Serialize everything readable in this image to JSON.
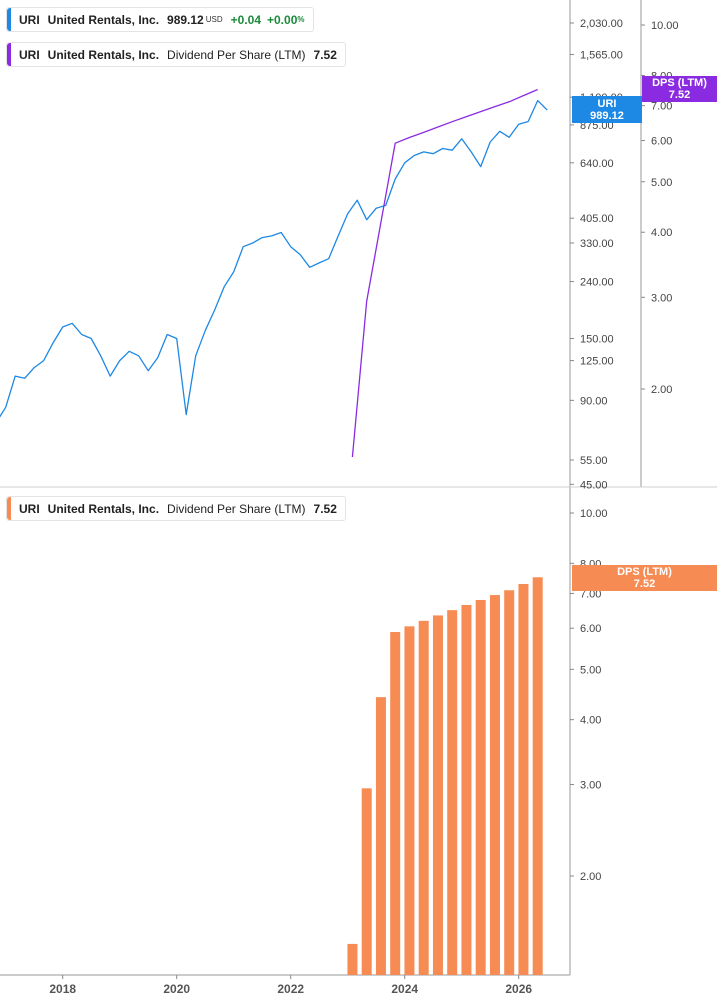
{
  "legends": {
    "price": {
      "ticker": "URI",
      "name": "United Rentals, Inc.",
      "value": "989.12",
      "currency": "USD",
      "change": "+0.04",
      "change_pct": "+0.00",
      "pct_sign": "%",
      "color": "#1e88e5"
    },
    "dps_top": {
      "ticker": "URI",
      "name": "United Rentals, Inc.",
      "metric": "Dividend Per Share (LTM)",
      "value": "7.52",
      "color": "#8a2be2"
    },
    "dps_bottom": {
      "ticker": "URI",
      "name": "United Rentals, Inc.",
      "metric": "Dividend Per Share (LTM)",
      "value": "7.52",
      "color": "#f68b53"
    }
  },
  "tags": {
    "price": {
      "label": "URI",
      "value": "989.12",
      "color": "#1e88e5"
    },
    "dps_top": {
      "label": "DPS (LTM)",
      "value": "7.52",
      "color": "#8a2be2"
    },
    "dps_bottom": {
      "label": "DPS (LTM)",
      "value": "7.52",
      "color": "#f68b53"
    }
  },
  "chart_data": [
    {
      "type": "line",
      "scale": "log",
      "series": [
        {
          "name": "URI",
          "color": "#1e88e5",
          "x": [
            "2016-11",
            "2017-01",
            "2017-03",
            "2017-05",
            "2017-07",
            "2017-09",
            "2017-11",
            "2018-01",
            "2018-03",
            "2018-05",
            "2018-07",
            "2018-09",
            "2018-11",
            "2019-01",
            "2019-03",
            "2019-05",
            "2019-07",
            "2019-09",
            "2019-11",
            "2020-01",
            "2020-03",
            "2020-05",
            "2020-07",
            "2020-09",
            "2020-11",
            "2021-01",
            "2021-03",
            "2021-05",
            "2021-07",
            "2021-09",
            "2021-11",
            "2022-01",
            "2022-03",
            "2022-05",
            "2022-07",
            "2022-09",
            "2022-11",
            "2023-01",
            "2023-03",
            "2023-05",
            "2023-07",
            "2023-09",
            "2023-11",
            "2024-01",
            "2024-03",
            "2024-05",
            "2024-07",
            "2024-09",
            "2024-11",
            "2025-01",
            "2025-03",
            "2025-05",
            "2025-07",
            "2025-09",
            "2025-11",
            "2026-01",
            "2026-03",
            "2026-05",
            "2026-07"
          ],
          "values": [
            75,
            85,
            110,
            108,
            118,
            125,
            145,
            165,
            170,
            155,
            150,
            130,
            110,
            125,
            135,
            130,
            115,
            128,
            155,
            150,
            80,
            130,
            160,
            190,
            230,
            260,
            320,
            330,
            345,
            350,
            360,
            320,
            300,
            270,
            280,
            290,
            350,
            420,
            470,
            400,
            440,
            450,
            560,
            640,
            680,
            700,
            690,
            720,
            710,
            780,
            700,
            620,
            760,
            830,
            790,
            880,
            900,
            1070,
            989.12
          ]
        }
      ],
      "y_ticks_right_1": [
        "2,030.00",
        "1,565.00",
        "1,100.00",
        "875.00",
        "640.00",
        "405.00",
        "330.00",
        "240.00",
        "150.00",
        "125.00",
        "90.00",
        "55.00",
        "45.00"
      ],
      "y_ticks_right_2": [
        "10.00",
        "8.00",
        "7.00",
        "6.00",
        "5.00",
        "4.00",
        "3.00",
        "2.00"
      ]
    },
    {
      "type": "line",
      "scale": "log",
      "series": [
        {
          "name": "Dividend Per Share (LTM)",
          "color": "#8a2be2",
          "x": [
            "2023-02",
            "2023-05",
            "2023-11",
            "2024-02",
            "2024-05",
            "2024-08",
            "2024-11",
            "2025-02",
            "2025-05",
            "2025-08",
            "2025-11",
            "2026-02",
            "2026-05"
          ],
          "values": [
            1.48,
            2.95,
            5.93,
            6.08,
            6.22,
            6.37,
            6.52,
            6.67,
            6.82,
            6.97,
            7.12,
            7.32,
            7.52
          ]
        }
      ]
    },
    {
      "type": "bar",
      "scale": "log",
      "series": [
        {
          "name": "Dividend Per Share (LTM)",
          "color": "#f68b53",
          "x": [
            "2023-02",
            "2023-05",
            "2023-08",
            "2023-11",
            "2024-02",
            "2024-05",
            "2024-08",
            "2024-11",
            "2025-02",
            "2025-05",
            "2025-08",
            "2025-11",
            "2026-02",
            "2026-05"
          ],
          "values": [
            1.48,
            2.95,
            4.42,
            5.9,
            6.05,
            6.2,
            6.35,
            6.5,
            6.65,
            6.8,
            6.95,
            7.1,
            7.3,
            7.52
          ]
        }
      ],
      "y_ticks": [
        "10.00",
        "8.00",
        "7.00",
        "6.00",
        "5.00",
        "4.00",
        "3.00",
        "2.00"
      ],
      "x_ticks": [
        "2018",
        "2020",
        "2022",
        "2024",
        "2026"
      ]
    }
  ]
}
